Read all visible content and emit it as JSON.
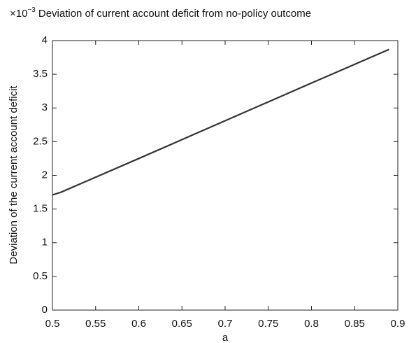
{
  "chart_data": {
    "type": "line",
    "title": "Deviation of current account deficit from no-policy outcome",
    "y_multiplier": {
      "base": "×10",
      "exponent": "−3"
    },
    "xlabel": "a",
    "ylabel": "Deviation of the  current account deficit",
    "x": [
      0.5,
      0.505,
      0.51,
      0.6,
      0.7,
      0.8,
      0.89
    ],
    "values": [
      1.71,
      1.73,
      1.75,
      2.25,
      2.81,
      3.37,
      3.87
    ],
    "color": "#333333",
    "xlim": [
      0.5,
      0.9
    ],
    "ylim": [
      0,
      4
    ],
    "xticks": [
      0.5,
      0.55,
      0.6,
      0.65,
      0.7,
      0.75,
      0.8,
      0.85,
      0.9
    ],
    "yticks": [
      0,
      0.5,
      1,
      1.5,
      2,
      2.5,
      3,
      3.5,
      4
    ],
    "grid": false
  }
}
